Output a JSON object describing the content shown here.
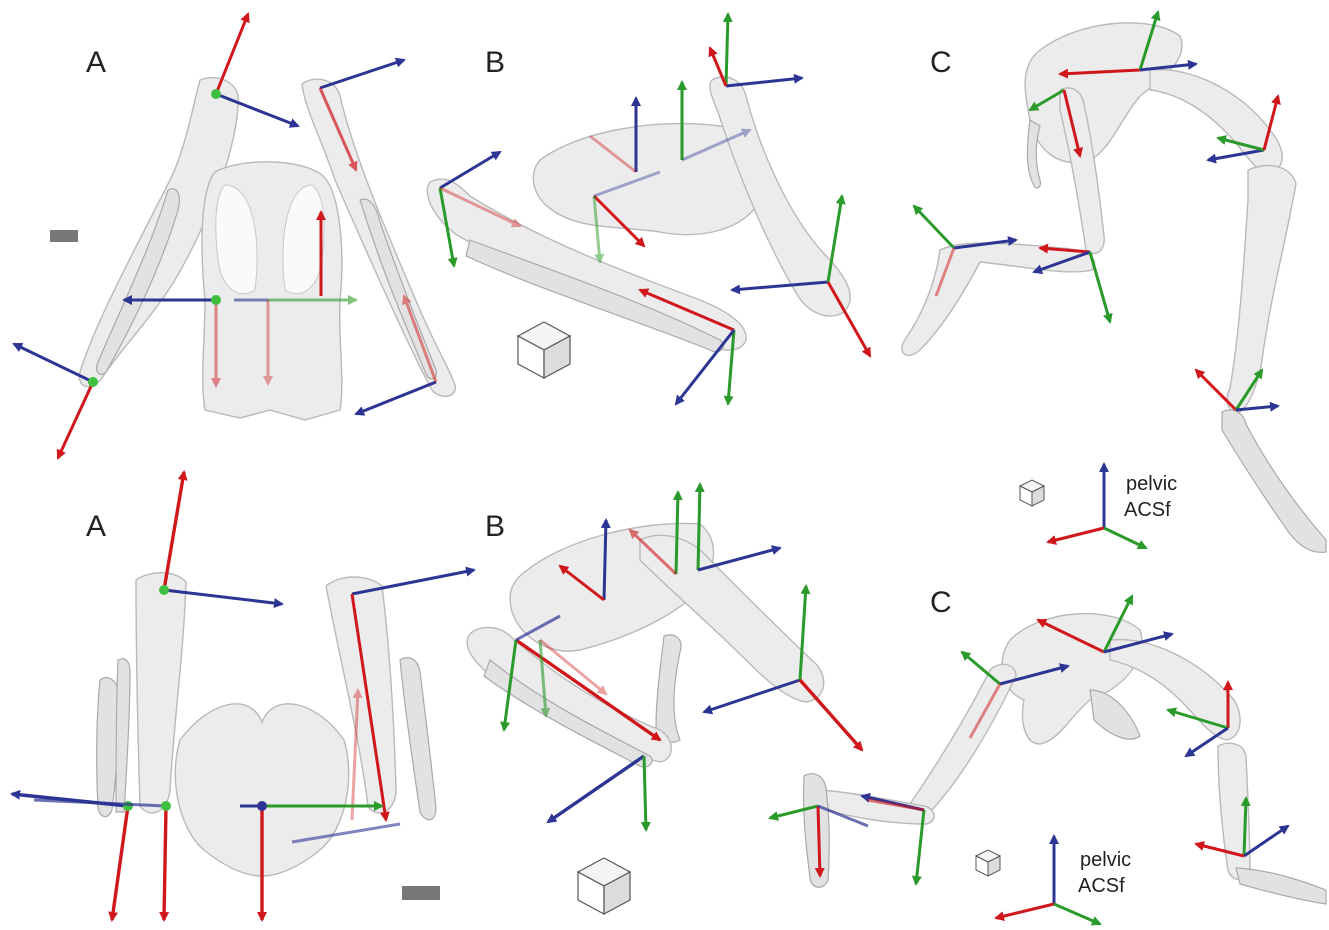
{
  "figure": {
    "rows": [
      {
        "name": "top",
        "panels": [
          {
            "id": "A",
            "label": "A"
          },
          {
            "id": "B",
            "label": "B"
          },
          {
            "id": "C",
            "label": "C"
          }
        ],
        "legend": {
          "line1": "pelvic",
          "line2": "ACSf"
        }
      },
      {
        "name": "bottom",
        "panels": [
          {
            "id": "A",
            "label": "A"
          },
          {
            "id": "B",
            "label": "B"
          },
          {
            "id": "C",
            "label": "C"
          }
        ],
        "legend": {
          "line1": "pelvic",
          "line2": "ACSf"
        }
      }
    ],
    "axis_colors": {
      "x": "#d0181c",
      "y": "#2a9a2a",
      "z": "#2d3594"
    }
  }
}
